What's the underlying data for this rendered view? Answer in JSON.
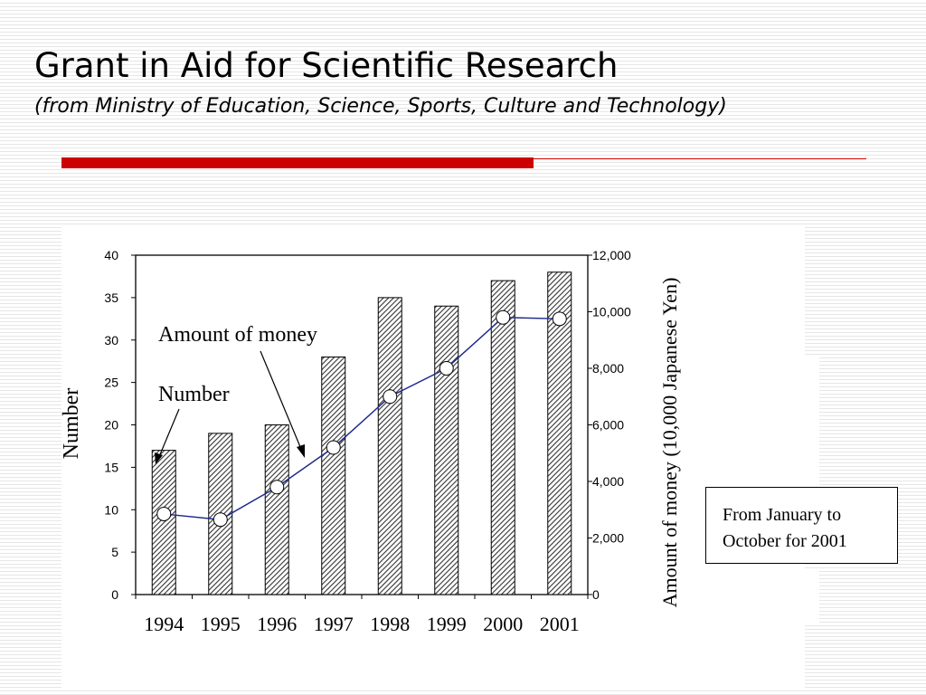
{
  "slide": {
    "title": "Grant in Aid for Scientific Research",
    "subtitle": "(from Ministry of Education, Science, Sports, Culture and Technology)",
    "accent_color": "#cc0000",
    "note": "From January to October for 2001"
  },
  "chart_data": {
    "type": "bar",
    "categories": [
      "1994",
      "1995",
      "1996",
      "1997",
      "1998",
      "1999",
      "2000",
      "2001"
    ],
    "series": [
      {
        "name": "Number",
        "type": "bar",
        "axis": "left",
        "values": [
          17,
          19,
          20,
          28,
          35,
          34,
          37,
          38
        ],
        "fill": "hatched"
      },
      {
        "name": "Amount of money",
        "type": "line",
        "axis": "right",
        "values": [
          2850,
          2650,
          3800,
          5200,
          7000,
          8000,
          9800,
          9750
        ],
        "color": "#1f2a8c"
      }
    ],
    "y_left": {
      "label": "Number",
      "range": [
        0,
        40
      ],
      "ticks": [
        "0",
        "5",
        "10",
        "15",
        "20",
        "25",
        "30",
        "35",
        "40"
      ]
    },
    "y_right": {
      "label": "Amount of money (10,000 Japanese Yen)",
      "range": [
        0,
        12000
      ],
      "ticks": [
        "0",
        "2,000",
        "4,000",
        "6,000",
        "8,000",
        "10,000",
        "12,000"
      ]
    },
    "annotations": [
      "Amount of money",
      "Number"
    ],
    "grid": false,
    "legend": "none"
  }
}
